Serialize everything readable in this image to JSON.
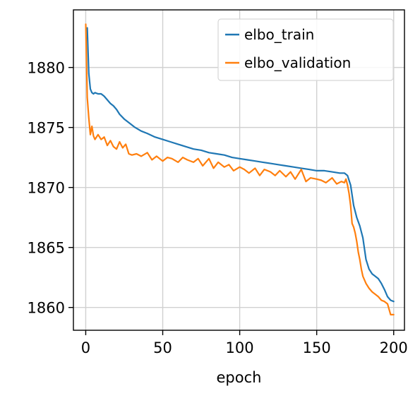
{
  "chart_data": {
    "type": "line",
    "title": "",
    "xlabel": "epoch",
    "ylabel": "",
    "xlim": [
      -8,
      207
    ],
    "ylim": [
      1858.1,
      1884.8
    ],
    "xticks": [
      0,
      50,
      100,
      150,
      200
    ],
    "yticks": [
      1860,
      1865,
      1870,
      1875,
      1880
    ],
    "grid": true,
    "legend": "top-right",
    "series": [
      {
        "name": "elbo_train",
        "color": "#1f77b4",
        "x": [
          1,
          2,
          3,
          4,
          5,
          6,
          8,
          10,
          12,
          14,
          16,
          18,
          20,
          22,
          25,
          28,
          32,
          36,
          40,
          45,
          50,
          55,
          60,
          65,
          70,
          75,
          80,
          85,
          90,
          95,
          100,
          105,
          110,
          115,
          120,
          125,
          130,
          135,
          140,
          145,
          150,
          155,
          160,
          165,
          168,
          170,
          172,
          174,
          176,
          178,
          180,
          182,
          184,
          186,
          188,
          190,
          192,
          194,
          196,
          198,
          200
        ],
        "values": [
          1883.3,
          1879.5,
          1878.2,
          1877.9,
          1877.8,
          1877.9,
          1877.8,
          1877.8,
          1877.6,
          1877.3,
          1877.0,
          1876.8,
          1876.5,
          1876.1,
          1875.7,
          1875.4,
          1875.0,
          1874.7,
          1874.5,
          1874.2,
          1874.0,
          1873.8,
          1873.6,
          1873.4,
          1873.2,
          1873.1,
          1872.9,
          1872.8,
          1872.7,
          1872.5,
          1872.4,
          1872.3,
          1872.2,
          1872.1,
          1872.0,
          1871.9,
          1871.8,
          1871.7,
          1871.6,
          1871.5,
          1871.4,
          1871.4,
          1871.3,
          1871.2,
          1871.2,
          1871.0,
          1870.2,
          1868.5,
          1867.5,
          1866.8,
          1865.8,
          1864.0,
          1863.2,
          1862.8,
          1862.6,
          1862.4,
          1862.0,
          1861.5,
          1860.9,
          1860.6,
          1860.5
        ]
      },
      {
        "name": "elbo_validation",
        "color": "#ff7f0e",
        "x": [
          0,
          1,
          2,
          3,
          4,
          5,
          6,
          8,
          10,
          12,
          14,
          16,
          18,
          20,
          22,
          24,
          26,
          28,
          30,
          33,
          36,
          40,
          43,
          46,
          50,
          53,
          56,
          60,
          63,
          66,
          70,
          73,
          76,
          80,
          83,
          86,
          90,
          93,
          96,
          100,
          103,
          106,
          110,
          113,
          116,
          120,
          123,
          126,
          130,
          133,
          136,
          140,
          143,
          146,
          150,
          153,
          156,
          160,
          163,
          166,
          168,
          169,
          170,
          171,
          172,
          173,
          174,
          175,
          176,
          177,
          178,
          179,
          180,
          182,
          184,
          186,
          188,
          190,
          192,
          194,
          196,
          198,
          200
        ],
        "values": [
          1883.6,
          1877.5,
          1875.8,
          1874.4,
          1875.1,
          1874.3,
          1874.0,
          1874.4,
          1874.0,
          1874.2,
          1873.5,
          1873.9,
          1873.4,
          1873.2,
          1873.8,
          1873.3,
          1873.6,
          1872.8,
          1872.7,
          1872.8,
          1872.6,
          1872.9,
          1872.3,
          1872.6,
          1872.2,
          1872.5,
          1872.4,
          1872.1,
          1872.5,
          1872.3,
          1872.1,
          1872.4,
          1871.8,
          1872.4,
          1871.6,
          1872.1,
          1871.7,
          1871.9,
          1871.4,
          1871.7,
          1871.5,
          1871.2,
          1871.6,
          1871.0,
          1871.5,
          1871.3,
          1871.0,
          1871.4,
          1870.9,
          1871.3,
          1870.7,
          1871.5,
          1870.5,
          1870.8,
          1870.7,
          1870.6,
          1870.4,
          1870.8,
          1870.3,
          1870.5,
          1870.4,
          1870.7,
          1870.2,
          1869.5,
          1868.5,
          1867.0,
          1866.7,
          1866.2,
          1865.5,
          1864.6,
          1864.0,
          1863.2,
          1862.6,
          1862.0,
          1861.6,
          1861.3,
          1861.1,
          1860.9,
          1860.6,
          1860.5,
          1860.3,
          1859.4,
          1859.4
        ]
      }
    ]
  }
}
